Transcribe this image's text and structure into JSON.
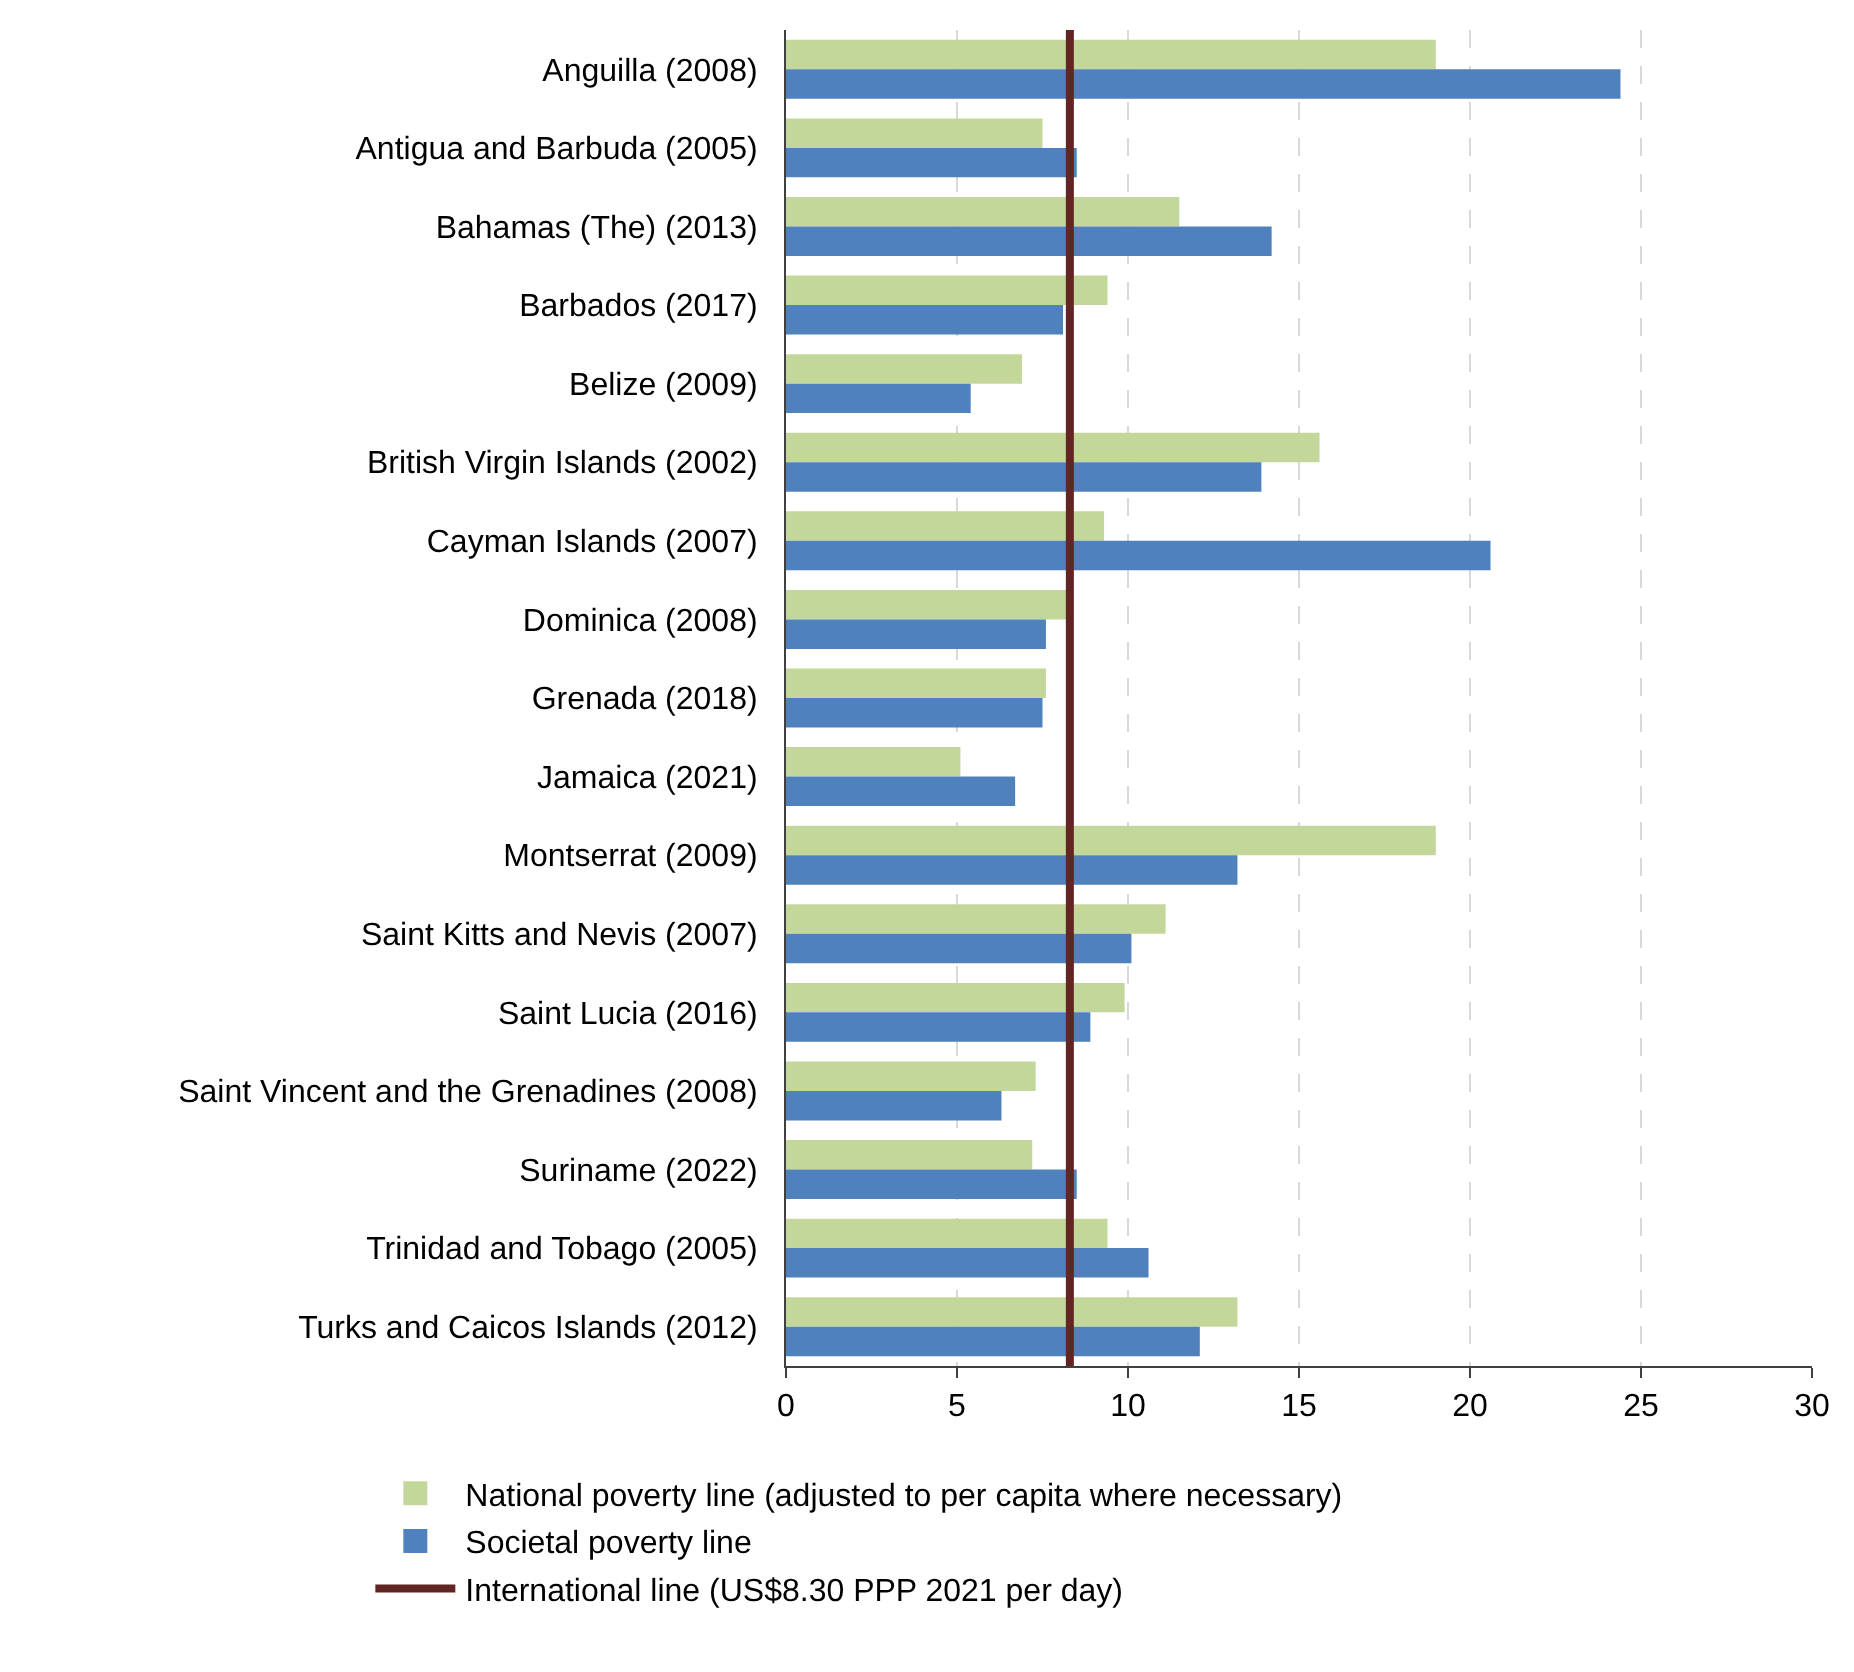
{
  "chart_data": {
    "type": "bar",
    "orientation": "horizontal",
    "categories": [
      "Anguilla (2008)",
      "Antigua and Barbuda (2005)",
      "Bahamas (The) (2013)",
      "Barbados (2017)",
      "Belize (2009)",
      "British Virgin Islands (2002)",
      "Cayman Islands (2007)",
      "Dominica (2008)",
      "Grenada (2018)",
      "Jamaica (2021)",
      "Montserrat (2009)",
      "Saint Kitts and Nevis (2007)",
      "Saint Lucia (2016)",
      "Saint Vincent and the Grenadines (2008)",
      "Suriname (2022)",
      "Trinidad and Tobago (2005)",
      "Turks and Caicos Islands (2012)"
    ],
    "series": [
      {
        "name": "National poverty line (adjusted to per capita where necessary)",
        "color": "#c4d79b",
        "values": [
          19.0,
          7.5,
          11.5,
          9.4,
          6.9,
          15.6,
          9.3,
          8.2,
          7.6,
          5.1,
          19.0,
          11.1,
          9.9,
          7.3,
          7.2,
          9.4,
          13.2
        ]
      },
      {
        "name": "Societal poverty line",
        "color": "#4f81bd",
        "values": [
          24.4,
          8.5,
          14.2,
          8.1,
          5.4,
          13.9,
          20.6,
          7.6,
          7.5,
          6.7,
          13.2,
          10.1,
          8.9,
          6.3,
          8.5,
          10.6,
          12.1
        ]
      }
    ],
    "xlim": [
      0,
      30
    ],
    "xticks": [
      0,
      5,
      10,
      15,
      20,
      25,
      30
    ],
    "grid": "x",
    "legend": "bottom",
    "ref_lines": [
      {
        "axis": "x",
        "value": 8.3,
        "label": "International line (US$8.30 PPP 2021 per day)",
        "color": "#632523"
      }
    ]
  }
}
